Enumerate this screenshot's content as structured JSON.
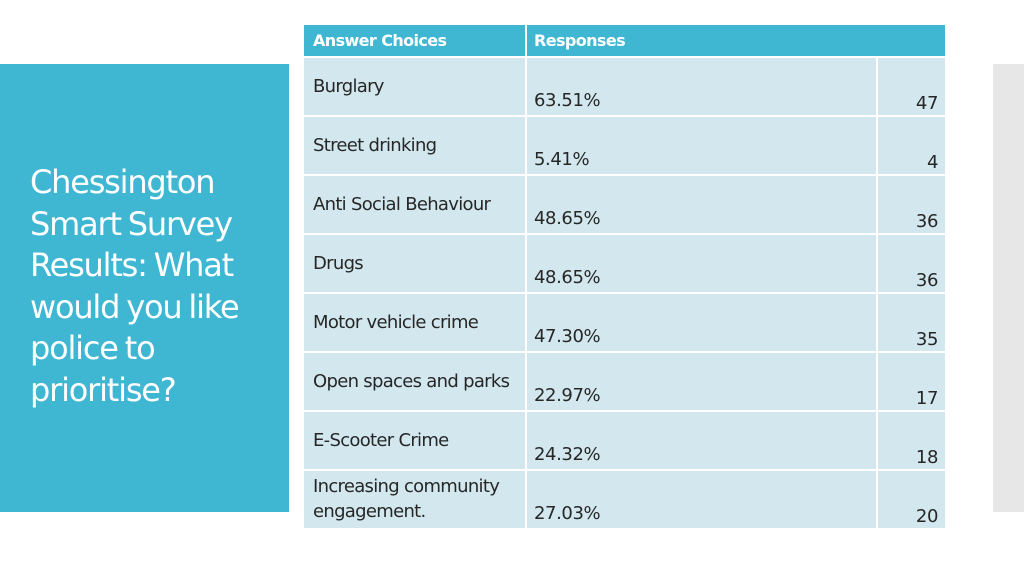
{
  "slide": {
    "title": "Chessington Smart Survey Results: What would you like police to prioritise?"
  },
  "table": {
    "headers": {
      "answer_choices": "Answer Choices",
      "responses": "Responses"
    },
    "rows": [
      {
        "choice": "Burglary",
        "percent": "63.51%",
        "count": "47"
      },
      {
        "choice": "Street drinking",
        "percent": "5.41%",
        "count": "4"
      },
      {
        "choice": "Anti Social Behaviour",
        "percent": "48.65%",
        "count": "36"
      },
      {
        "choice": "Drugs",
        "percent": "48.65%",
        "count": "36"
      },
      {
        "choice": "Motor vehicle crime",
        "percent": "47.30%",
        "count": "35"
      },
      {
        "choice": "Open spaces and parks",
        "percent": "22.97%",
        "count": "17"
      },
      {
        "choice": "E-Scooter Crime",
        "percent": "24.32%",
        "count": "18"
      },
      {
        "choice": "Increasing community engagement.",
        "percent": "27.03%",
        "count": "20"
      }
    ]
  },
  "colors": {
    "accent": "#3fb7d3",
    "row_fill": "#d2e8ee",
    "side_bar": "#e7e7e7",
    "text": "#262626"
  }
}
